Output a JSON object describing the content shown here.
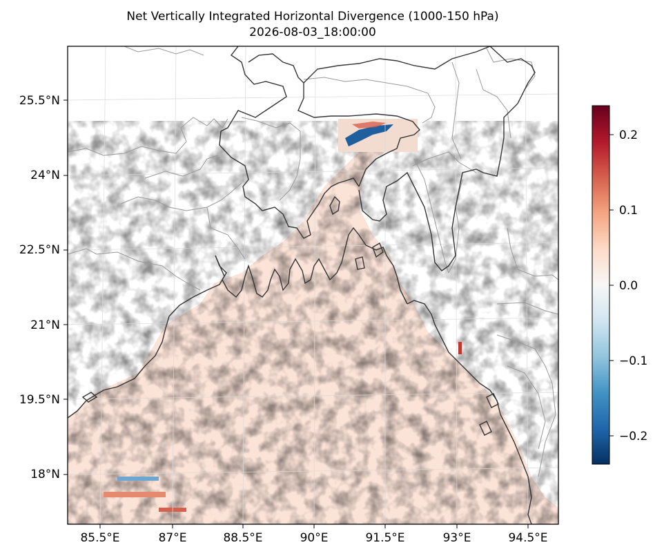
{
  "title": {
    "line1": "Net Vertically Integrated Horizontal Divergence (1000-150 hPa)",
    "line2": "2026-08-03_18:00:00"
  },
  "map": {
    "lat_labels": [
      "25.5°N",
      "24°N",
      "22.5°N",
      "21°N",
      "19.5°N",
      "18°N"
    ],
    "lon_labels": [
      "85.5°E",
      "87°E",
      "88.5°E",
      "90°E",
      "91.5°E",
      "93°E",
      "94.5°E"
    ],
    "field_colormap": "RdBu_r",
    "coastline_color": "#333333",
    "border_color": "#999999",
    "grid": true
  },
  "colorbar": {
    "ticks": [
      "0.2",
      "0.1",
      "0.0",
      "−0.1",
      "−0.2"
    ],
    "tick_values": [
      0.2,
      0.1,
      0.0,
      -0.1,
      -0.2
    ],
    "range": [
      -0.24,
      0.24
    ],
    "colors": [
      "#053061",
      "#2166ac",
      "#4393c3",
      "#92c5de",
      "#d1e5f0",
      "#f7f7f7",
      "#fddbc7",
      "#f4a582",
      "#d6604d",
      "#b2182b",
      "#67001f"
    ]
  }
}
